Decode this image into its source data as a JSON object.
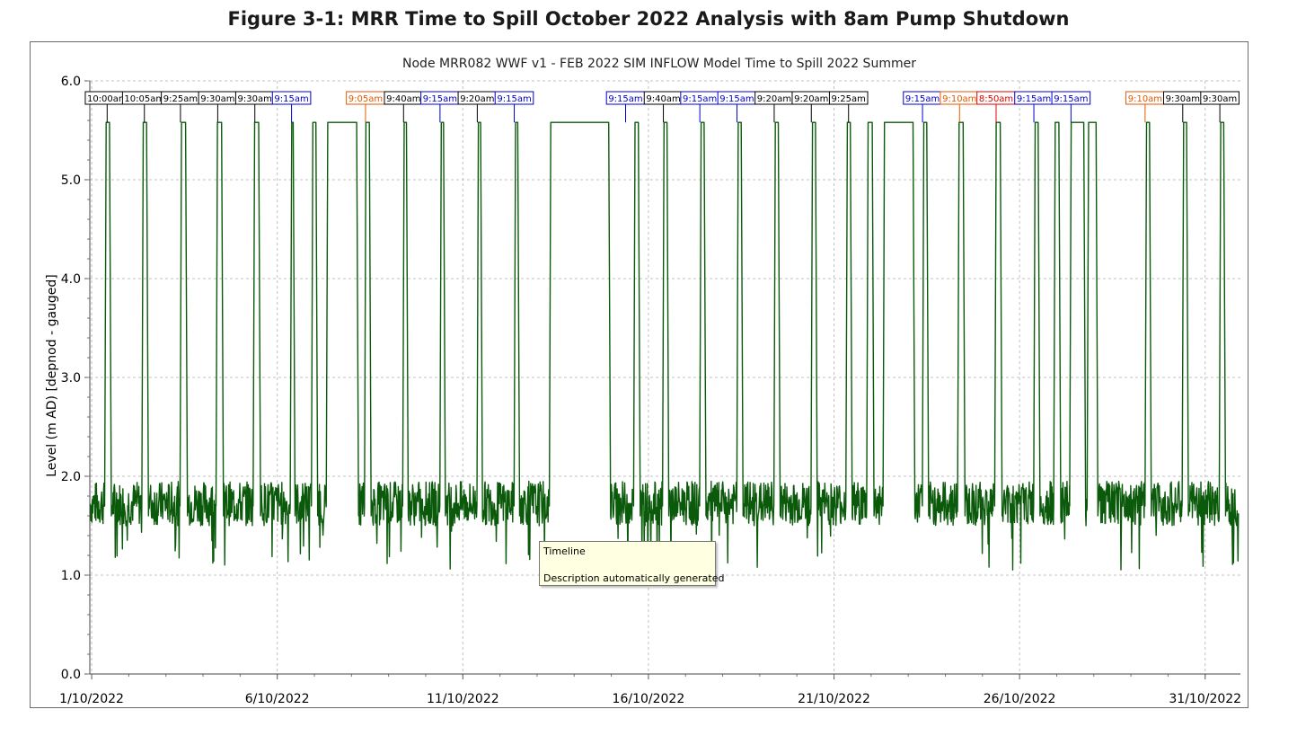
{
  "figure_title": "Figure 3-1: MRR Time to Spill October 2022 Analysis with 8am Pump Shutdown",
  "tooltip": {
    "line1": "Timeline",
    "line2": "Description automatically generated"
  },
  "chart_data": {
    "type": "line",
    "title": "Node MRR082 WWF v1 - FEB 2022 SIM INFLOW Model Time to Spill 2022 Summer",
    "xlabel": "",
    "ylabel": "Level (m AD) [depnod - gauged]",
    "ylim": [
      0,
      6
    ],
    "x_tick_labels": [
      "1/10/2022",
      "6/10/2022",
      "11/10/2022",
      "16/10/2022",
      "21/10/2022",
      "26/10/2022",
      "31/10/2022"
    ],
    "x_tick_days": [
      1,
      6,
      11,
      16,
      21,
      26,
      31
    ],
    "xlim_days": [
      0.95,
      31.95
    ],
    "y_ticks": [
      0.0,
      1.0,
      2.0,
      3.0,
      4.0,
      5.0,
      6.0
    ],
    "y_tick_labels": [
      "0.0",
      "1.0",
      "2.0",
      "3.0",
      "4.0",
      "5.0",
      "6.0"
    ],
    "grid": true,
    "line_color": "#0b5a0b",
    "series": [
      {
        "name": "",
        "color": "#0b5a0b",
        "baseline_range": [
          1.5,
          1.95
        ],
        "spill_level": 5.58,
        "spill_events": [
          {
            "start_day": 1.35,
            "end_day": 1.5
          },
          {
            "start_day": 2.35,
            "end_day": 2.5
          },
          {
            "start_day": 3.38,
            "end_day": 3.55
          },
          {
            "start_day": 4.35,
            "end_day": 4.52
          },
          {
            "start_day": 5.35,
            "end_day": 5.52
          },
          {
            "start_day": 6.35,
            "end_day": 6.45
          },
          {
            "start_day": 6.92,
            "end_day": 7.06
          },
          {
            "start_day": 7.32,
            "end_day": 8.16
          },
          {
            "start_day": 8.35,
            "end_day": 8.5
          },
          {
            "start_day": 9.38,
            "end_day": 9.5
          },
          {
            "start_day": 10.38,
            "end_day": 10.5
          },
          {
            "start_day": 11.38,
            "end_day": 11.5
          },
          {
            "start_day": 12.38,
            "end_day": 12.5
          },
          {
            "start_day": 13.33,
            "end_day": 14.95
          },
          {
            "start_day": 15.6,
            "end_day": 15.75
          },
          {
            "start_day": 16.38,
            "end_day": 16.52
          },
          {
            "start_day": 17.38,
            "end_day": 17.52
          },
          {
            "start_day": 18.38,
            "end_day": 18.52
          },
          {
            "start_day": 19.38,
            "end_day": 19.52
          },
          {
            "start_day": 20.38,
            "end_day": 20.52
          },
          {
            "start_day": 21.32,
            "end_day": 21.46
          },
          {
            "start_day": 21.88,
            "end_day": 22.05
          },
          {
            "start_day": 22.32,
            "end_day": 23.15
          },
          {
            "start_day": 23.38,
            "end_day": 23.52
          },
          {
            "start_day": 24.33,
            "end_day": 24.5
          },
          {
            "start_day": 25.33,
            "end_day": 25.5
          },
          {
            "start_day": 26.38,
            "end_day": 26.52
          },
          {
            "start_day": 26.92,
            "end_day": 27.08
          },
          {
            "start_day": 27.35,
            "end_day": 27.75
          },
          {
            "start_day": 27.82,
            "end_day": 28.08
          },
          {
            "start_day": 29.38,
            "end_day": 29.52
          },
          {
            "start_day": 30.38,
            "end_day": 30.52
          },
          {
            "start_day": 31.38,
            "end_day": 31.52
          }
        ]
      }
    ],
    "annotations": [
      {
        "label": "10:00am",
        "day": 1.417,
        "color": "#000000"
      },
      {
        "label": "10:05am",
        "day": 2.42,
        "color": "#000000"
      },
      {
        "label": "9:25am",
        "day": 3.392,
        "color": "#000000"
      },
      {
        "label": "9:30am",
        "day": 4.396,
        "color": "#000000"
      },
      {
        "label": "9:30am",
        "day": 5.396,
        "color": "#000000"
      },
      {
        "label": "9:15am",
        "day": 6.385,
        "color": "#0000cc"
      },
      {
        "label": "9:05am",
        "day": 8.378,
        "color": "#e05a00"
      },
      {
        "label": "9:40am",
        "day": 9.403,
        "color": "#000000"
      },
      {
        "label": "9:15am",
        "day": 10.385,
        "color": "#0000cc"
      },
      {
        "label": "9:20am",
        "day": 11.389,
        "color": "#000000"
      },
      {
        "label": "9:15am",
        "day": 12.385,
        "color": "#0000cc"
      },
      {
        "label": "9:15am",
        "day": 15.385,
        "color": "#0000cc"
      },
      {
        "label": "9:40am",
        "day": 16.403,
        "color": "#000000"
      },
      {
        "label": "9:15am",
        "day": 17.385,
        "color": "#0000cc"
      },
      {
        "label": "9:15am",
        "day": 18.385,
        "color": "#0000cc"
      },
      {
        "label": "9:20am",
        "day": 19.389,
        "color": "#000000"
      },
      {
        "label": "9:20am",
        "day": 20.389,
        "color": "#000000"
      },
      {
        "label": "9:25am",
        "day": 21.392,
        "color": "#000000"
      },
      {
        "label": "9:15am",
        "day": 23.385,
        "color": "#0000cc"
      },
      {
        "label": "9:10am",
        "day": 24.382,
        "color": "#e05a00"
      },
      {
        "label": "8:50am",
        "day": 25.368,
        "color": "#dd0000"
      },
      {
        "label": "9:15am",
        "day": 26.385,
        "color": "#0000cc"
      },
      {
        "label": "9:15am",
        "day": 27.385,
        "color": "#0000cc"
      },
      {
        "label": "9:10am",
        "day": 29.382,
        "color": "#e05a00"
      },
      {
        "label": "9:30am",
        "day": 30.396,
        "color": "#000000"
      },
      {
        "label": "9:30am",
        "day": 31.396,
        "color": "#000000"
      }
    ]
  }
}
